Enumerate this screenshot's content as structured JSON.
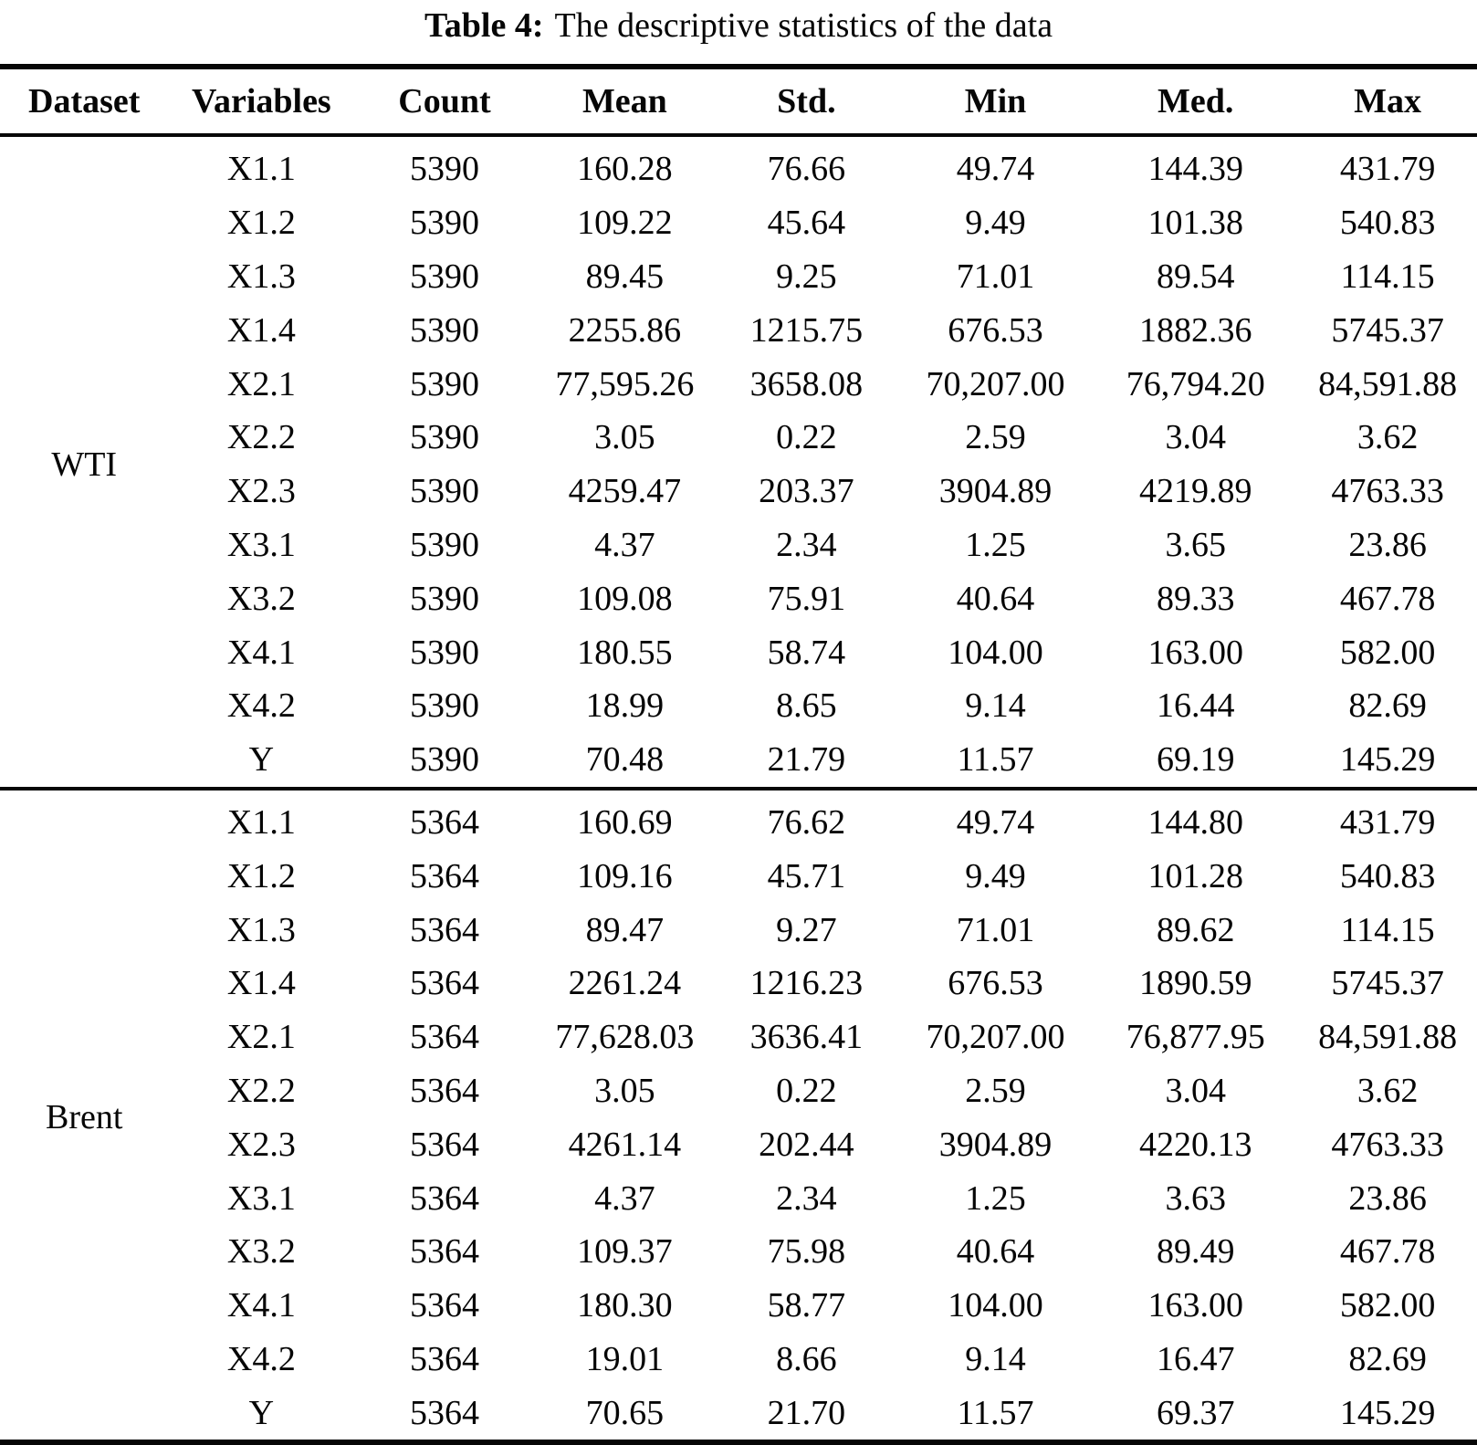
{
  "title": {
    "label": "Table 4:",
    "text": "The descriptive statistics of the data"
  },
  "table": {
    "columns": [
      "Dataset",
      "Variables",
      "Count",
      "Mean",
      "Std.",
      "Min",
      "Med.",
      "Max"
    ],
    "groups": [
      {
        "dataset": "WTI",
        "rows": [
          [
            "X1.1",
            "5390",
            "160.28",
            "76.66",
            "49.74",
            "144.39",
            "431.79"
          ],
          [
            "X1.2",
            "5390",
            "109.22",
            "45.64",
            "9.49",
            "101.38",
            "540.83"
          ],
          [
            "X1.3",
            "5390",
            "89.45",
            "9.25",
            "71.01",
            "89.54",
            "114.15"
          ],
          [
            "X1.4",
            "5390",
            "2255.86",
            "1215.75",
            "676.53",
            "1882.36",
            "5745.37"
          ],
          [
            "X2.1",
            "5390",
            "77,595.26",
            "3658.08",
            "70,207.00",
            "76,794.20",
            "84,591.88"
          ],
          [
            "X2.2",
            "5390",
            "3.05",
            "0.22",
            "2.59",
            "3.04",
            "3.62"
          ],
          [
            "X2.3",
            "5390",
            "4259.47",
            "203.37",
            "3904.89",
            "4219.89",
            "4763.33"
          ],
          [
            "X3.1",
            "5390",
            "4.37",
            "2.34",
            "1.25",
            "3.65",
            "23.86"
          ],
          [
            "X3.2",
            "5390",
            "109.08",
            "75.91",
            "40.64",
            "89.33",
            "467.78"
          ],
          [
            "X4.1",
            "5390",
            "180.55",
            "58.74",
            "104.00",
            "163.00",
            "582.00"
          ],
          [
            "X4.2",
            "5390",
            "18.99",
            "8.65",
            "9.14",
            "16.44",
            "82.69"
          ],
          [
            "Y",
            "5390",
            "70.48",
            "21.79",
            "11.57",
            "69.19",
            "145.29"
          ]
        ]
      },
      {
        "dataset": "Brent",
        "rows": [
          [
            "X1.1",
            "5364",
            "160.69",
            "76.62",
            "49.74",
            "144.80",
            "431.79"
          ],
          [
            "X1.2",
            "5364",
            "109.16",
            "45.71",
            "9.49",
            "101.28",
            "540.83"
          ],
          [
            "X1.3",
            "5364",
            "89.47",
            "9.27",
            "71.01",
            "89.62",
            "114.15"
          ],
          [
            "X1.4",
            "5364",
            "2261.24",
            "1216.23",
            "676.53",
            "1890.59",
            "5745.37"
          ],
          [
            "X2.1",
            "5364",
            "77,628.03",
            "3636.41",
            "70,207.00",
            "76,877.95",
            "84,591.88"
          ],
          [
            "X2.2",
            "5364",
            "3.05",
            "0.22",
            "2.59",
            "3.04",
            "3.62"
          ],
          [
            "X2.3",
            "5364",
            "4261.14",
            "202.44",
            "3904.89",
            "4220.13",
            "4763.33"
          ],
          [
            "X3.1",
            "5364",
            "4.37",
            "2.34",
            "1.25",
            "3.63",
            "23.86"
          ],
          [
            "X3.2",
            "5364",
            "109.37",
            "75.98",
            "40.64",
            "89.49",
            "467.78"
          ],
          [
            "X4.1",
            "5364",
            "180.30",
            "58.77",
            "104.00",
            "163.00",
            "582.00"
          ],
          [
            "X4.2",
            "5364",
            "19.01",
            "8.66",
            "9.14",
            "16.47",
            "82.69"
          ],
          [
            "Y",
            "5364",
            "70.65",
            "21.70",
            "11.57",
            "69.37",
            "145.29"
          ]
        ]
      }
    ]
  }
}
